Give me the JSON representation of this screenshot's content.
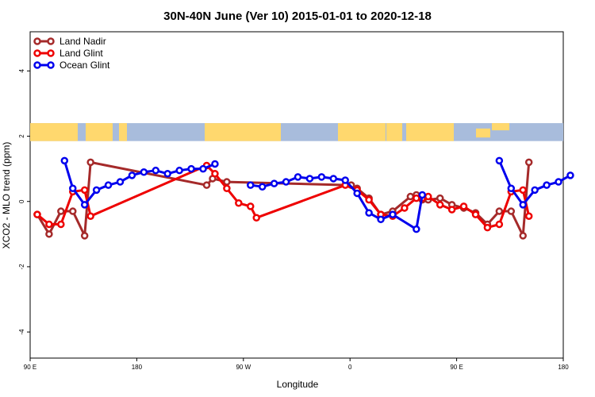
{
  "chart_data": {
    "type": "line",
    "title": "30N-40N June (Ver 10)   2015-01-01 to 2020-12-18",
    "xlabel": "Longitude",
    "ylabel": "XCO2 - MLO trend (ppm)",
    "x_tick_labels": [
      "90 E",
      "180",
      "90 W",
      "0",
      "90 E",
      "180"
    ],
    "x_tick_values": [
      90,
      180,
      270,
      360,
      450,
      540
    ],
    "xlim": [
      90,
      540
    ],
    "y_tick_labels": [
      "-4",
      "-2",
      "0",
      "2",
      "4"
    ],
    "y_tick_values": [
      -4,
      -2,
      0,
      2,
      4
    ],
    "ylim": [
      -4.8,
      5.2
    ],
    "legend_position": "top-left",
    "grid": false,
    "map_band": {
      "y_range": [
        1.85,
        2.4
      ],
      "land_color": "#ffd86e",
      "ocean_color": "#a8bcdc"
    },
    "series": [
      {
        "name": "Land Nadir",
        "color": "#a52a2a",
        "points": [
          [
            96,
            -0.4
          ],
          [
            106,
            -1.0
          ],
          [
            116,
            -0.3
          ],
          [
            126,
            -0.3
          ],
          [
            136,
            -1.05
          ],
          [
            141,
            1.2
          ],
          [
            239,
            0.5
          ],
          [
            244,
            0.7
          ],
          [
            256,
            0.6
          ],
          [
            361,
            0.5
          ],
          [
            366,
            0.4
          ],
          [
            376,
            0.1
          ],
          [
            386,
            -0.4
          ],
          [
            396,
            -0.3
          ],
          [
            411,
            0.15
          ],
          [
            416,
            0.2
          ],
          [
            421,
            0.05
          ],
          [
            426,
            0.05
          ],
          [
            436,
            0.1
          ],
          [
            446,
            -0.1
          ],
          [
            456,
            -0.2
          ],
          [
            466,
            -0.35
          ],
          [
            476,
            -0.7
          ],
          [
            486,
            -0.3
          ],
          [
            496,
            -0.3
          ],
          [
            506,
            -1.05
          ],
          [
            511,
            1.2
          ]
        ]
      },
      {
        "name": "Land Glint",
        "color": "#ee0000",
        "points": [
          [
            96,
            -0.4
          ],
          [
            106,
            -0.7
          ],
          [
            116,
            -0.7
          ],
          [
            126,
            0.3
          ],
          [
            136,
            0.35
          ],
          [
            141,
            -0.45
          ],
          [
            239,
            1.1
          ],
          [
            246,
            0.85
          ],
          [
            256,
            0.4
          ],
          [
            266,
            -0.05
          ],
          [
            276,
            -0.15
          ],
          [
            281,
            -0.5
          ],
          [
            356,
            0.5
          ],
          [
            366,
            0.35
          ],
          [
            376,
            0.05
          ],
          [
            386,
            -0.4
          ],
          [
            396,
            -0.45
          ],
          [
            406,
            -0.2
          ],
          [
            416,
            0.1
          ],
          [
            421,
            0.1
          ],
          [
            426,
            0.15
          ],
          [
            436,
            -0.1
          ],
          [
            446,
            -0.25
          ],
          [
            456,
            -0.15
          ],
          [
            466,
            -0.4
          ],
          [
            476,
            -0.8
          ],
          [
            486,
            -0.7
          ],
          [
            496,
            0.3
          ],
          [
            506,
            0.35
          ],
          [
            511,
            -0.45
          ]
        ]
      },
      {
        "name": "Ocean Glint",
        "color": "#0000ee",
        "points": [
          [
            119,
            1.25
          ],
          [
            126,
            0.4
          ],
          [
            136,
            -0.1
          ],
          [
            146,
            0.35
          ],
          [
            156,
            0.5
          ],
          [
            166,
            0.6
          ],
          [
            176,
            0.8
          ],
          [
            186,
            0.9
          ],
          [
            196,
            0.95
          ],
          [
            206,
            0.85
          ],
          [
            216,
            0.95
          ],
          [
            226,
            1.0
          ],
          [
            236,
            1.0
          ],
          [
            246,
            1.15
          ],
          [
            276,
            0.5
          ],
          [
            286,
            0.45
          ],
          [
            296,
            0.55
          ],
          [
            306,
            0.6
          ],
          [
            316,
            0.75
          ],
          [
            326,
            0.7
          ],
          [
            336,
            0.75
          ],
          [
            346,
            0.7
          ],
          [
            356,
            0.65
          ],
          [
            366,
            0.25
          ],
          [
            376,
            -0.35
          ],
          [
            386,
            -0.55
          ],
          [
            396,
            -0.4
          ],
          [
            416,
            -0.85
          ],
          [
            421,
            0.2
          ],
          [
            486,
            1.25
          ],
          [
            496,
            0.4
          ],
          [
            506,
            -0.1
          ],
          [
            516,
            0.35
          ],
          [
            526,
            0.5
          ],
          [
            536,
            0.6
          ],
          [
            546,
            0.8
          ]
        ],
        "segments_break_after": [
          13,
          28
        ]
      }
    ]
  }
}
